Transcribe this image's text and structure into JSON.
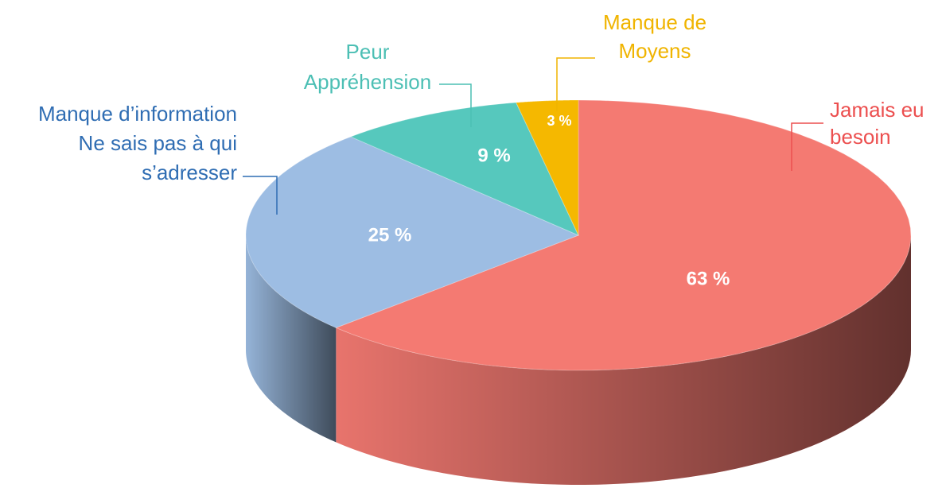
{
  "chart_data": {
    "type": "pie",
    "categories": [
      [
        "Jamais eu",
        "besoin"
      ],
      [
        "Manque d’information",
        "Ne sais pas à qui",
        "s’adresser"
      ],
      [
        "Peur",
        "Appréhension"
      ],
      [
        "Manque de",
        "Moyens"
      ]
    ],
    "values": [
      63,
      25,
      9,
      3
    ],
    "value_labels": [
      "63 %",
      "25 %",
      "9 %",
      "3 %"
    ],
    "colors": [
      "#f47a72",
      "#9dbde3",
      "#56c8bd",
      "#f5b800"
    ],
    "label_colors": [
      "#ec4f4f",
      "#2f6db3",
      "#4cbfb4",
      "#f0b400"
    ]
  }
}
